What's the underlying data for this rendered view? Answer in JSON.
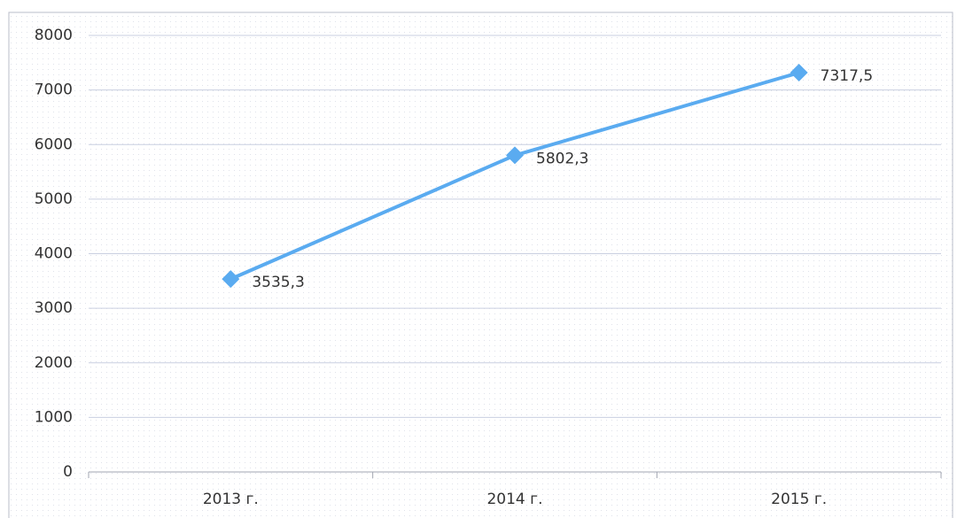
{
  "chart_data": {
    "type": "line",
    "categories": [
      "2013 г.",
      "2014 г.",
      "2015 г."
    ],
    "values": [
      3535.3,
      5802.3,
      7317.5
    ],
    "value_labels": [
      "3535,3",
      "5802,3",
      "7317,5"
    ],
    "color": "#5aabf0",
    "ylim": [
      0,
      8000
    ],
    "yticks": [
      0,
      1000,
      2000,
      3000,
      4000,
      5000,
      6000,
      7000,
      8000
    ],
    "grid": true
  }
}
